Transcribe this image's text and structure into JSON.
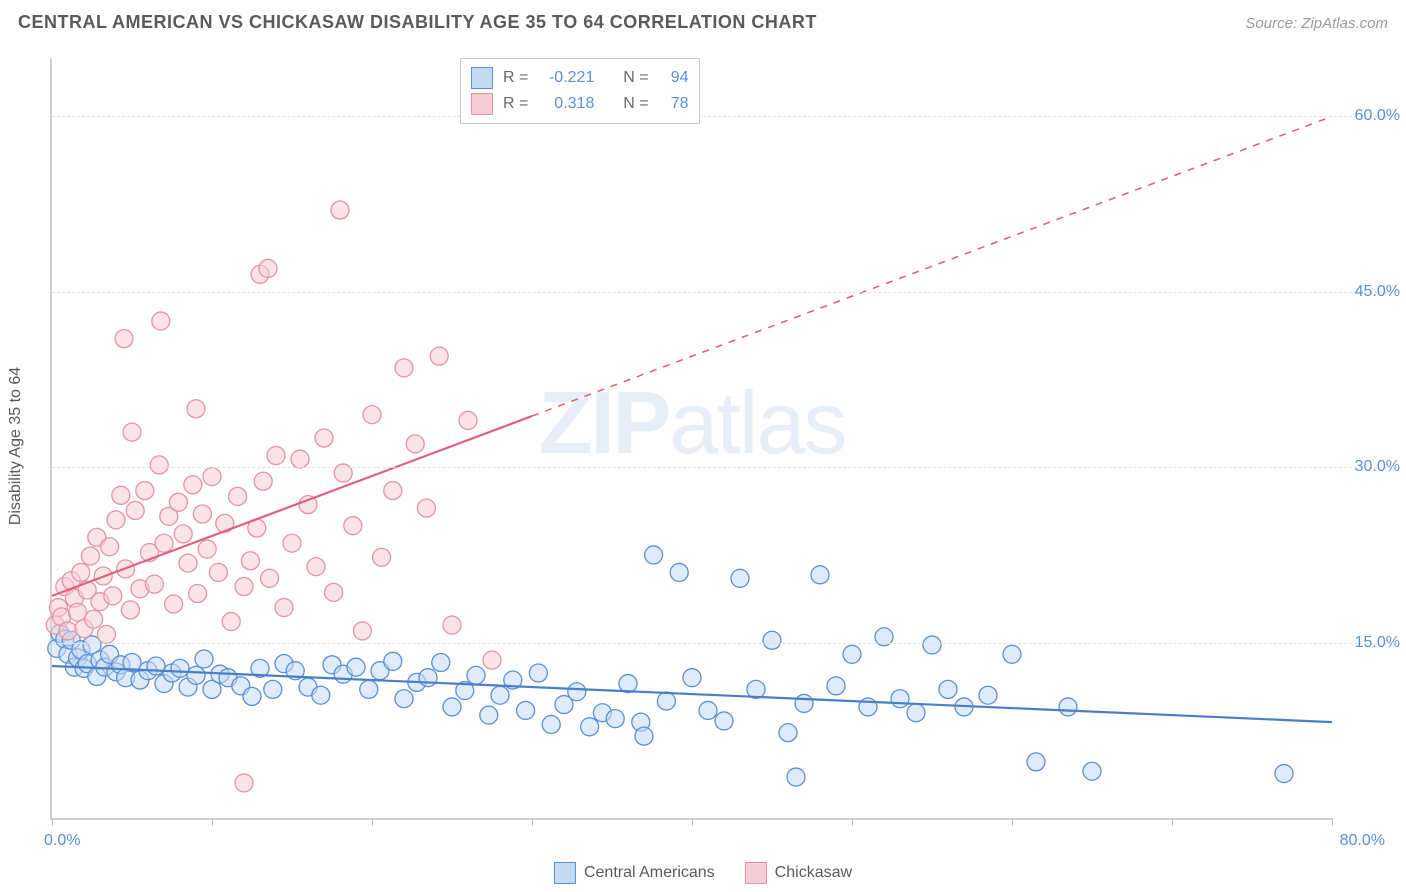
{
  "header": {
    "title": "CENTRAL AMERICAN VS CHICKASAW DISABILITY AGE 35 TO 64 CORRELATION CHART",
    "source_prefix": "Source: ",
    "source": "ZipAtlas.com"
  },
  "watermark": {
    "zip": "ZIP",
    "atlas": "atlas"
  },
  "chart": {
    "type": "scatter",
    "ylabel": "Disability Age 35 to 64",
    "xlim": [
      0,
      80
    ],
    "ylim": [
      0,
      65
    ],
    "x_ticks": [
      0,
      10,
      20,
      30,
      40,
      50,
      60,
      70,
      80
    ],
    "x_tick_labels": {
      "min": "0.0%",
      "max": "80.0%"
    },
    "y_gridlines": [
      15,
      30,
      45,
      60
    ],
    "y_tick_labels": [
      "15.0%",
      "30.0%",
      "45.0%",
      "60.0%"
    ],
    "background_color": "#ffffff",
    "grid_color": "#e0e0e0",
    "axis_color": "#d0d0d0",
    "tick_color": "#5b8fd6",
    "label_color": "#5a5a5a",
    "marker_radius": 9,
    "marker_opacity": 0.55,
    "line_width": 2.2,
    "statbox": {
      "rows": [
        {
          "swatch": "blue",
          "r_label": "R =",
          "r": "-0.221",
          "n_label": "N =",
          "n": "94"
        },
        {
          "swatch": "pink",
          "r_label": "R =",
          "r": "0.318",
          "n_label": "N =",
          "n": "78"
        }
      ]
    },
    "legend": {
      "items": [
        {
          "swatch": "blue",
          "label": "Central Americans"
        },
        {
          "swatch": "pink",
          "label": "Chickasaw"
        }
      ]
    },
    "series": [
      {
        "name": "Central Americans",
        "fill": "#c5dbf3",
        "stroke": "#5b8fd6",
        "trend": {
          "x1": 0,
          "y1": 13.0,
          "x2": 80,
          "y2": 8.2,
          "solid_to_x": 80,
          "color": "#4a7fc6"
        },
        "points": [
          [
            0.3,
            14.5
          ],
          [
            0.5,
            15.8
          ],
          [
            0.8,
            15.3
          ],
          [
            1.0,
            14.0
          ],
          [
            1.2,
            15.2
          ],
          [
            1.4,
            12.9
          ],
          [
            1.6,
            13.7
          ],
          [
            1.8,
            14.4
          ],
          [
            2.0,
            12.8
          ],
          [
            2.2,
            13.2
          ],
          [
            2.5,
            14.8
          ],
          [
            2.8,
            12.1
          ],
          [
            3.0,
            13.5
          ],
          [
            3.3,
            12.9
          ],
          [
            3.6,
            14.0
          ],
          [
            4.0,
            12.5
          ],
          [
            4.3,
            13.1
          ],
          [
            4.6,
            12.0
          ],
          [
            5.0,
            13.3
          ],
          [
            5.5,
            11.8
          ],
          [
            6.0,
            12.6
          ],
          [
            6.5,
            13.0
          ],
          [
            7.0,
            11.5
          ],
          [
            7.5,
            12.4
          ],
          [
            8.0,
            12.8
          ],
          [
            8.5,
            11.2
          ],
          [
            9.0,
            12.2
          ],
          [
            9.5,
            13.6
          ],
          [
            10.0,
            11.0
          ],
          [
            10.5,
            12.3
          ],
          [
            11.0,
            12.0
          ],
          [
            11.8,
            11.3
          ],
          [
            12.5,
            10.4
          ],
          [
            13.0,
            12.8
          ],
          [
            13.8,
            11.0
          ],
          [
            14.5,
            13.2
          ],
          [
            15.2,
            12.6
          ],
          [
            16.0,
            11.2
          ],
          [
            16.8,
            10.5
          ],
          [
            17.5,
            13.1
          ],
          [
            18.2,
            12.3
          ],
          [
            19.0,
            12.9
          ],
          [
            19.8,
            11.0
          ],
          [
            20.5,
            12.6
          ],
          [
            21.3,
            13.4
          ],
          [
            22.0,
            10.2
          ],
          [
            22.8,
            11.6
          ],
          [
            23.5,
            12.0
          ],
          [
            24.3,
            13.3
          ],
          [
            25.0,
            9.5
          ],
          [
            25.8,
            10.9
          ],
          [
            26.5,
            12.2
          ],
          [
            27.3,
            8.8
          ],
          [
            28.0,
            10.5
          ],
          [
            28.8,
            11.8
          ],
          [
            29.6,
            9.2
          ],
          [
            30.4,
            12.4
          ],
          [
            31.2,
            8.0
          ],
          [
            32.0,
            9.7
          ],
          [
            32.8,
            10.8
          ],
          [
            33.6,
            7.8
          ],
          [
            34.4,
            9.0
          ],
          [
            35.2,
            8.5
          ],
          [
            36.0,
            11.5
          ],
          [
            36.8,
            8.2
          ],
          [
            37.6,
            22.5
          ],
          [
            38.4,
            10.0
          ],
          [
            37.0,
            7.0
          ],
          [
            39.2,
            21.0
          ],
          [
            40.0,
            12.0
          ],
          [
            41.0,
            9.2
          ],
          [
            42.0,
            8.3
          ],
          [
            43.0,
            20.5
          ],
          [
            44.0,
            11.0
          ],
          [
            45.0,
            15.2
          ],
          [
            46.0,
            7.3
          ],
          [
            46.5,
            3.5
          ],
          [
            47.0,
            9.8
          ],
          [
            48.0,
            20.8
          ],
          [
            49.0,
            11.3
          ],
          [
            50.0,
            14.0
          ],
          [
            51.0,
            9.5
          ],
          [
            52.0,
            15.5
          ],
          [
            53.0,
            10.2
          ],
          [
            54.0,
            9.0
          ],
          [
            55.0,
            14.8
          ],
          [
            56.0,
            11.0
          ],
          [
            57.0,
            9.5
          ],
          [
            60.0,
            14.0
          ],
          [
            61.5,
            4.8
          ],
          [
            63.5,
            9.5
          ],
          [
            65.0,
            4.0
          ],
          [
            77.0,
            3.8
          ],
          [
            58.5,
            10.5
          ]
        ]
      },
      {
        "name": "Chickasaw",
        "fill": "#f6cdd6",
        "stroke": "#e394a7",
        "trend": {
          "x1": 0,
          "y1": 19.0,
          "x2": 80,
          "y2": 60.0,
          "solid_to_x": 30,
          "color": "#e0607c"
        },
        "points": [
          [
            0.2,
            16.5
          ],
          [
            0.4,
            18.0
          ],
          [
            0.6,
            17.2
          ],
          [
            0.8,
            19.8
          ],
          [
            1.0,
            16.0
          ],
          [
            1.2,
            20.3
          ],
          [
            1.4,
            18.8
          ],
          [
            1.6,
            17.6
          ],
          [
            1.8,
            21.0
          ],
          [
            2.0,
            16.2
          ],
          [
            2.2,
            19.5
          ],
          [
            2.4,
            22.4
          ],
          [
            2.6,
            17.0
          ],
          [
            2.8,
            24.0
          ],
          [
            3.0,
            18.5
          ],
          [
            3.2,
            20.7
          ],
          [
            3.4,
            15.7
          ],
          [
            3.6,
            23.2
          ],
          [
            3.8,
            19.0
          ],
          [
            4.0,
            25.5
          ],
          [
            4.3,
            27.6
          ],
          [
            4.6,
            21.3
          ],
          [
            4.9,
            17.8
          ],
          [
            5.2,
            26.3
          ],
          [
            5.5,
            19.6
          ],
          [
            5.8,
            28.0
          ],
          [
            6.1,
            22.7
          ],
          [
            6.4,
            20.0
          ],
          [
            6.7,
            30.2
          ],
          [
            7.0,
            23.5
          ],
          [
            7.3,
            25.8
          ],
          [
            7.6,
            18.3
          ],
          [
            7.9,
            27.0
          ],
          [
            8.2,
            24.3
          ],
          [
            8.5,
            21.8
          ],
          [
            8.8,
            28.5
          ],
          [
            9.1,
            19.2
          ],
          [
            4.5,
            41.0
          ],
          [
            6.8,
            42.5
          ],
          [
            9.4,
            26.0
          ],
          [
            9.7,
            23.0
          ],
          [
            10.0,
            29.2
          ],
          [
            10.4,
            21.0
          ],
          [
            5.0,
            33.0
          ],
          [
            10.8,
            25.2
          ],
          [
            11.2,
            16.8
          ],
          [
            11.6,
            27.5
          ],
          [
            12.0,
            19.8
          ],
          [
            12.4,
            22.0
          ],
          [
            12.8,
            24.8
          ],
          [
            13.2,
            28.8
          ],
          [
            13.6,
            20.5
          ],
          [
            14.0,
            31.0
          ],
          [
            9.0,
            35.0
          ],
          [
            14.5,
            18.0
          ],
          [
            15.0,
            23.5
          ],
          [
            13.0,
            46.5
          ],
          [
            15.5,
            30.7
          ],
          [
            16.0,
            26.8
          ],
          [
            16.5,
            21.5
          ],
          [
            17.0,
            32.5
          ],
          [
            13.5,
            47.0
          ],
          [
            17.6,
            19.3
          ],
          [
            18.2,
            29.5
          ],
          [
            18.8,
            25.0
          ],
          [
            19.4,
            16.0
          ],
          [
            20.0,
            34.5
          ],
          [
            18.0,
            52.0
          ],
          [
            20.6,
            22.3
          ],
          [
            21.3,
            28.0
          ],
          [
            22.0,
            38.5
          ],
          [
            22.7,
            32.0
          ],
          [
            23.4,
            26.5
          ],
          [
            24.2,
            39.5
          ],
          [
            25.0,
            16.5
          ],
          [
            26.0,
            34.0
          ],
          [
            12.0,
            3.0
          ],
          [
            27.5,
            13.5
          ]
        ]
      }
    ]
  }
}
